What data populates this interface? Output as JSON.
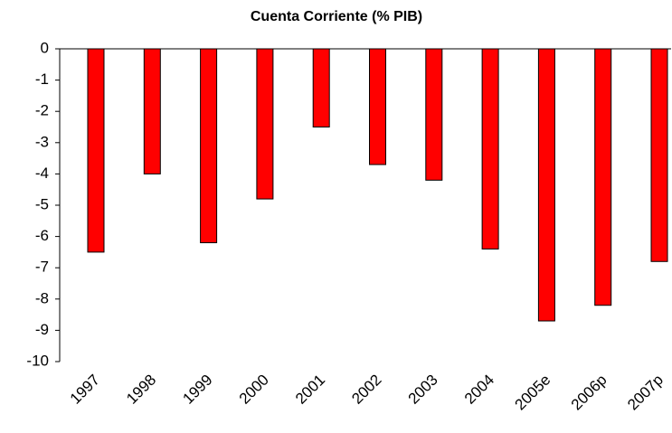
{
  "chart_data": {
    "type": "bar",
    "title": "Cuenta Corriente (% PIB)",
    "categories": [
      "1997",
      "1998",
      "1999",
      "2000",
      "2001",
      "2002",
      "2003",
      "2004",
      "2005e",
      "2006p",
      "2007p"
    ],
    "values": [
      -6.5,
      -4.0,
      -6.2,
      -4.8,
      -2.5,
      -3.7,
      -4.2,
      -6.4,
      -8.7,
      -8.2,
      -6.8
    ],
    "color": "#ff0000",
    "ylim": [
      -10,
      0
    ],
    "yticks": [
      0,
      -1,
      -2,
      -3,
      -4,
      -5,
      -6,
      -7,
      -8,
      -9,
      -10
    ],
    "grid": false
  }
}
